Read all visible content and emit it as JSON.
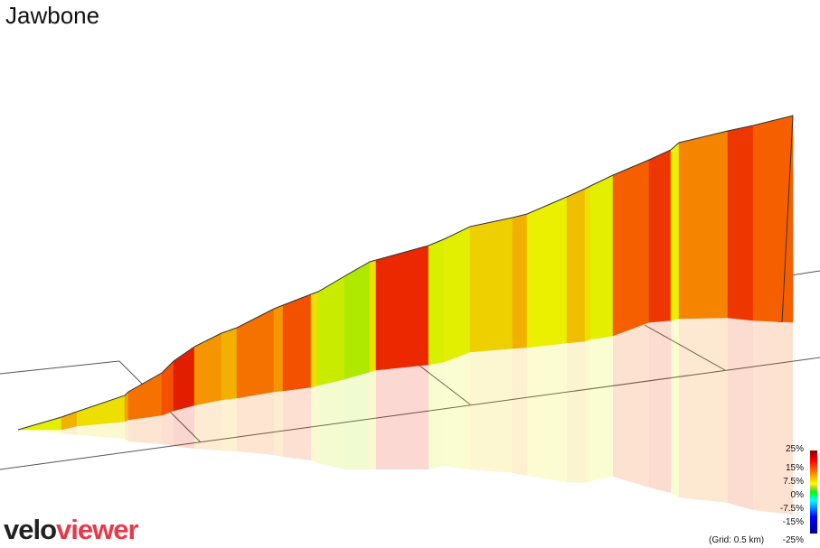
{
  "title": "Jawbone",
  "logo": {
    "part1": "velo",
    "part2": "viewer"
  },
  "grid_note": "(Grid: 0.5 km)",
  "legend": {
    "labels": [
      "25%",
      "15%",
      "7.5%",
      "0%",
      "-7.5%",
      "-15%",
      "-25%"
    ]
  },
  "chart_data": {
    "type": "area",
    "title": "Jawbone",
    "xlabel": "",
    "ylabel": "",
    "grid_spacing_km": 0.5,
    "gradient_scale_percent": [
      25,
      15,
      7.5,
      0,
      -7.5,
      -15,
      -25
    ],
    "segments_gradient_percent": [
      7,
      12,
      9,
      13,
      16,
      18,
      22,
      14,
      12,
      16,
      14,
      18,
      9,
      4,
      2,
      9,
      21,
      6,
      7,
      10,
      12,
      8,
      11,
      9,
      7,
      17,
      20,
      8,
      15,
      20,
      17
    ]
  }
}
